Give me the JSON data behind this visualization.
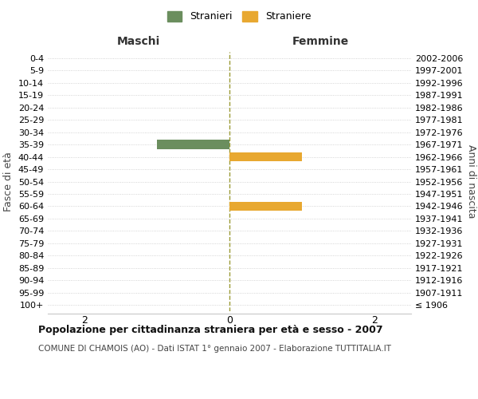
{
  "age_groups": [
    "100+",
    "95-99",
    "90-94",
    "85-89",
    "80-84",
    "75-79",
    "70-74",
    "65-69",
    "60-64",
    "55-59",
    "50-54",
    "45-49",
    "40-44",
    "35-39",
    "30-34",
    "25-29",
    "20-24",
    "15-19",
    "10-14",
    "5-9",
    "0-4"
  ],
  "birth_years": [
    "≤ 1906",
    "1907-1911",
    "1912-1916",
    "1917-1921",
    "1922-1926",
    "1927-1931",
    "1932-1936",
    "1937-1941",
    "1942-1946",
    "1947-1951",
    "1952-1956",
    "1957-1961",
    "1962-1966",
    "1967-1971",
    "1972-1976",
    "1977-1981",
    "1982-1986",
    "1987-1991",
    "1992-1996",
    "1997-2001",
    "2002-2006"
  ],
  "males": [
    0,
    0,
    0,
    0,
    0,
    0,
    0,
    0,
    0,
    0,
    0,
    0,
    0,
    1,
    0,
    0,
    0,
    0,
    0,
    0,
    0
  ],
  "females": [
    0,
    0,
    0,
    0,
    0,
    0,
    0,
    0,
    1,
    0,
    0,
    0,
    1,
    0,
    0,
    0,
    0,
    0,
    0,
    0,
    0
  ],
  "male_color": "#6b8e5e",
  "female_color": "#e8a830",
  "xlim": 2.5,
  "xticks": [
    -2,
    0,
    2
  ],
  "title": "Popolazione per cittadinanza straniera per età e sesso - 2007",
  "subtitle": "COMUNE DI CHAMOIS (AO) - Dati ISTAT 1° gennaio 2007 - Elaborazione TUTTITALIA.IT",
  "legend_male": "Stranieri",
  "legend_female": "Straniere",
  "ylabel_left": "Fasce di età",
  "ylabel_right": "Anni di nascita",
  "header_left": "Maschi",
  "header_right": "Femmine",
  "bg_color": "#ffffff",
  "grid_color": "#c8c8c8",
  "bar_height": 0.75
}
